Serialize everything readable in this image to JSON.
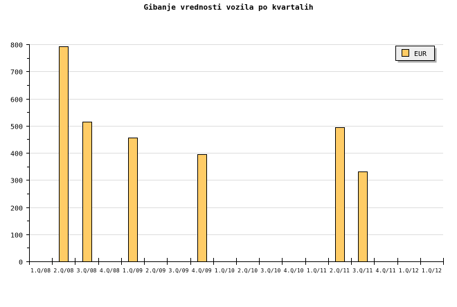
{
  "chart_data": {
    "type": "bar",
    "title": "Gibanje vrednosti vozila po kvartalih",
    "categories": [
      "1.Q/08",
      "2.Q/08",
      "3.Q/08",
      "4.Q/08",
      "1.Q/09",
      "2.Q/09",
      "3.Q/09",
      "4.Q/09",
      "1.Q/10",
      "2.Q/10",
      "3.Q/10",
      "4.Q/10",
      "1.Q/11",
      "2.Q/11",
      "3.Q/11",
      "4.Q/11",
      "1.Q/12",
      "1.Q/12"
    ],
    "series": [
      {
        "name": "EUR",
        "values": [
          0,
          792,
          515,
          0,
          457,
          0,
          0,
          395,
          0,
          0,
          0,
          0,
          0,
          495,
          330,
          0,
          0,
          0
        ],
        "color": "#ffcc66"
      }
    ],
    "ylim": [
      0,
      800
    ],
    "yticks": [
      0,
      100,
      200,
      300,
      400,
      500,
      600,
      700,
      800
    ],
    "grid": true,
    "legend": "top-right",
    "xlabel": "",
    "ylabel": ""
  }
}
